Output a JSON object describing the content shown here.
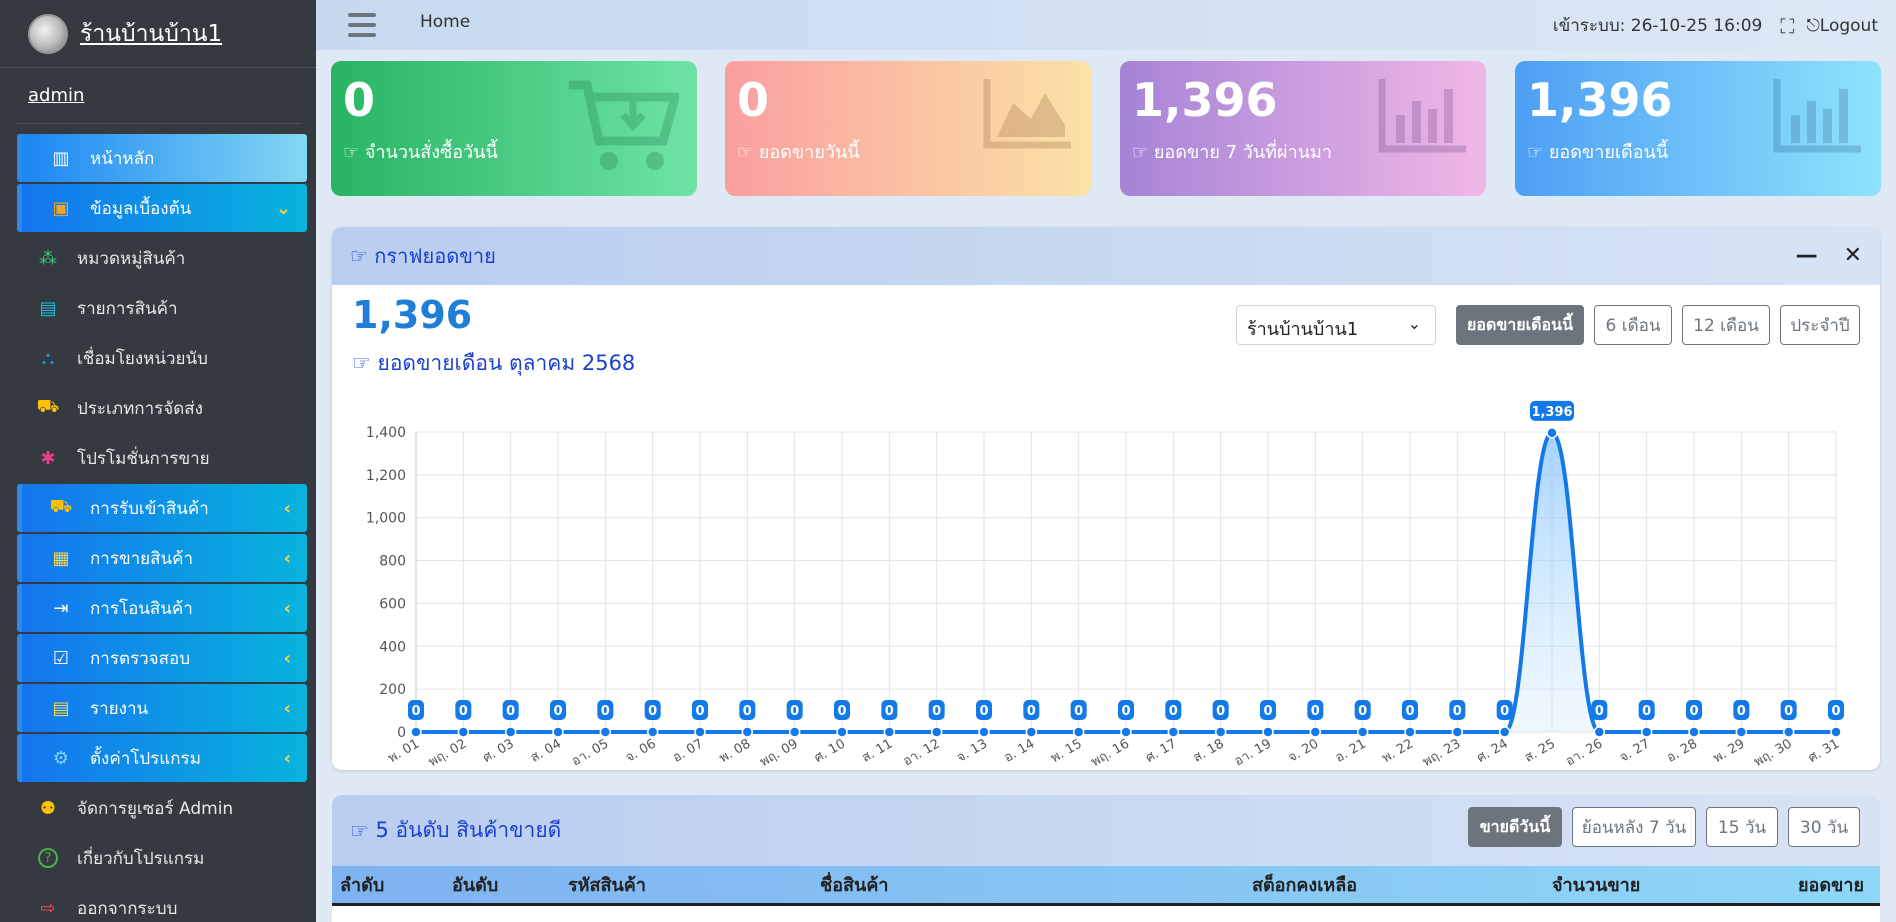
{
  "sidebar": {
    "brand": "ร้านบ้านบ้าน1",
    "user": "admin",
    "items": [
      {
        "label": "หน้าหลัก",
        "icon": "chart-bar-icon",
        "style": "home"
      },
      {
        "label": "ข้อมูลเบื้องต้น",
        "icon": "box-icon",
        "style": "grad",
        "expanded": true
      },
      {
        "label": "หมวดหมู่สินค้า",
        "icon": "cubes-icon",
        "style": "sub"
      },
      {
        "label": "รายการสินค้า",
        "icon": "file-icon",
        "style": "sub"
      },
      {
        "label": "เชื่อมโยงหน่วยนับ",
        "icon": "sitemap-icon",
        "style": "sub"
      },
      {
        "label": "ประเภทการจัดส่ง",
        "icon": "truck-icon",
        "style": "sub"
      },
      {
        "label": "โปรโมชั่นการขาย",
        "icon": "gift-icon",
        "style": "sub"
      },
      {
        "label": "การรับเข้าสินค้า",
        "icon": "truck-icon",
        "style": "grad"
      },
      {
        "label": "การขายสินค้า",
        "icon": "calculator-icon",
        "style": "grad"
      },
      {
        "label": "การโอนสินค้า",
        "icon": "file-export-icon",
        "style": "grad"
      },
      {
        "label": "การตรวจสอบ",
        "icon": "clipboard-check-icon",
        "style": "grad"
      },
      {
        "label": "รายงาน",
        "icon": "file-alt-icon",
        "style": "grad"
      },
      {
        "label": "ตั้งค่าโปรแกรม",
        "icon": "cogs-icon",
        "style": "grad"
      },
      {
        "label": "จัดการยูเซอร์ Admin",
        "icon": "users-cog-icon",
        "style": "sub"
      },
      {
        "label": "เกี่ยวกับโปรแกรม",
        "icon": "question-circle-icon",
        "style": "sub"
      },
      {
        "label": "ออกจากระบบ",
        "icon": "sign-out-icon",
        "style": "sub"
      }
    ]
  },
  "topbar": {
    "home": "Home",
    "login_label": "เข้าระบบ: 26-10-25 16:09",
    "logout": "Logout"
  },
  "cards": [
    {
      "value": "0",
      "label": "จำนวนสั่งซื้อวันนี้",
      "icon": "cart-download-icon"
    },
    {
      "value": "0",
      "label": "ยอดขายวันนี้",
      "icon": "area-chart-icon"
    },
    {
      "value": "1,396",
      "label": "ยอดขาย 7 วันที่ผ่านมา",
      "icon": "bar-chart-icon"
    },
    {
      "value": "1,396",
      "label": "ยอดขายเดือนนี้",
      "icon": "bar-chart-icon"
    }
  ],
  "sales_panel": {
    "title": "กราฟยอดขาย",
    "big_value": "1,396",
    "subtitle": "ยอดขายเดือน ตุลาคม 2568",
    "store_select": "ร้านบ้านบ้าน1",
    "buttons": [
      "ยอดขายเดือนนี้",
      "6 เดือน",
      "12 เดือน",
      "ประจำปี"
    ]
  },
  "chart_data": {
    "type": "line",
    "x": [
      "พ. 01",
      "พฤ. 02",
      "ศ. 03",
      "ส. 04",
      "อา. 05",
      "จ. 06",
      "อ. 07",
      "พ. 08",
      "พฤ. 09",
      "ศ. 10",
      "ส. 11",
      "อา. 12",
      "จ. 13",
      "อ. 14",
      "พ. 15",
      "พฤ. 16",
      "ศ. 17",
      "ส. 18",
      "อา. 19",
      "จ. 20",
      "อ. 21",
      "พ. 22",
      "พฤ. 23",
      "ศ. 24",
      "ส. 25",
      "อา. 26",
      "จ. 27",
      "อ. 28",
      "พ. 29",
      "พฤ. 30",
      "ศ. 31"
    ],
    "values": [
      0,
      0,
      0,
      0,
      0,
      0,
      0,
      0,
      0,
      0,
      0,
      0,
      0,
      0,
      0,
      0,
      0,
      0,
      0,
      0,
      0,
      0,
      0,
      0,
      1396,
      0,
      0,
      0,
      0,
      0,
      0
    ],
    "data_labels": [
      "0",
      "0",
      "0",
      "0",
      "0",
      "0",
      "0",
      "0",
      "0",
      "0",
      "0",
      "0",
      "0",
      "0",
      "0",
      "0",
      "0",
      "0",
      "0",
      "0",
      "0",
      "0",
      "0",
      "0",
      "1,396",
      "0",
      "0",
      "0",
      "0",
      "0",
      "0"
    ],
    "ylim": [
      0,
      1400
    ],
    "yticks": [
      "0",
      "200",
      "400",
      "600",
      "800",
      "1,000",
      "1,200",
      "1,400"
    ],
    "grid": true
  },
  "top5_panel": {
    "title": "5 อันดับ สินค้าขายดี",
    "buttons": [
      "ขายดีวันนี้",
      "ย้อนหลัง 7 วัน",
      "15 วัน",
      "30 วัน"
    ],
    "columns": [
      "ลำดับ",
      "อันดับ",
      "รหัสสินค้า",
      "ชื่อสินค้า",
      "สต็อกคงเหลือ",
      "จำนวนขาย",
      "ยอดขาย"
    ]
  }
}
